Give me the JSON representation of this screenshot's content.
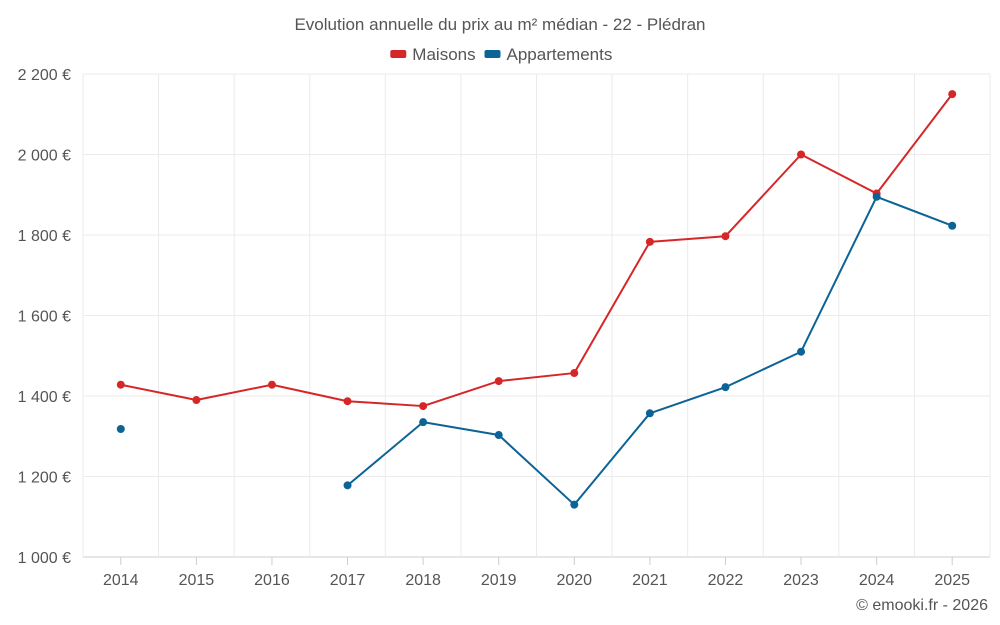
{
  "chart_data": {
    "type": "line",
    "title": "Evolution annuelle du prix au m² médian - 22 - Plédran",
    "categories": [
      "2014",
      "2015",
      "2016",
      "2017",
      "2018",
      "2019",
      "2020",
      "2021",
      "2022",
      "2023",
      "2024",
      "2025"
    ],
    "y_ticks": [
      1000,
      1200,
      1400,
      1600,
      1800,
      2000,
      2200
    ],
    "y_tick_labels": [
      "1 000 €",
      "1 200 €",
      "1 400 €",
      "1 600 €",
      "1 800 €",
      "2 000 €",
      "2 200 €"
    ],
    "ylim": [
      1000,
      2200
    ],
    "grid": true,
    "legend_position": "top-center",
    "series": [
      {
        "name": "Maisons",
        "color": "#d62728",
        "values": [
          1428,
          1390,
          1428,
          1387,
          1375,
          1437,
          1457,
          1783,
          1797,
          2000,
          1903,
          2150
        ]
      },
      {
        "name": "Appartements",
        "color": "#0b6396",
        "values": [
          1318,
          null,
          null,
          1178,
          1335,
          1303,
          1130,
          1357,
          1422,
          1510,
          1895,
          1823
        ]
      }
    ],
    "credit": "© emooki.fr - 2026"
  }
}
